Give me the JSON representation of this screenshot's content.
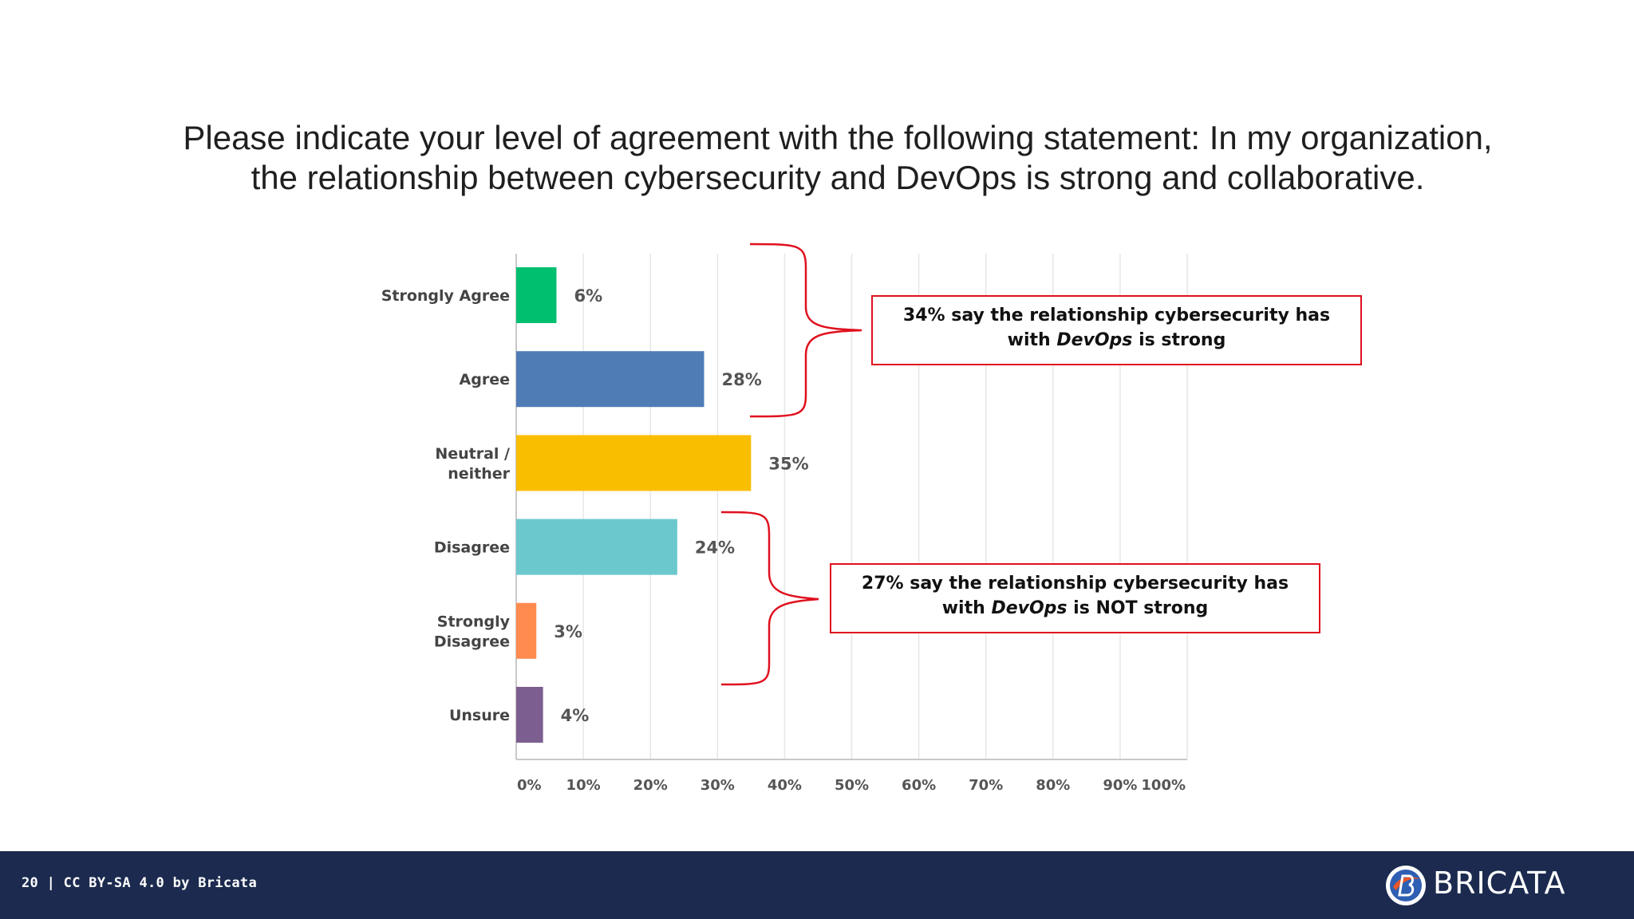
{
  "slide": {
    "title_line1": "Please indicate your level of agreement with the following statement: In my organization,",
    "title_line2": "the relationship between cybersecurity and DevOps is strong and collaborative."
  },
  "chart_data": {
    "type": "bar",
    "orientation": "horizontal",
    "categories": [
      "Strongly Agree",
      "Agree",
      "Neutral / neither",
      "Disagree",
      "Strongly Disagree",
      "Unsure"
    ],
    "category_lines": [
      [
        "Strongly Agree"
      ],
      [
        "Agree"
      ],
      [
        "Neutral /",
        "neither"
      ],
      [
        "Disagree"
      ],
      [
        "Strongly",
        "Disagree"
      ],
      [
        "Unsure"
      ]
    ],
    "values": [
      6,
      28,
      35,
      24,
      3,
      4
    ],
    "data_labels": [
      "6%",
      "28%",
      "35%",
      "24%",
      "3%",
      "4%"
    ],
    "colors": [
      "#00bf6f",
      "#507cb6",
      "#f9be00",
      "#6bc8cd",
      "#ff8b4f",
      "#7d5e90"
    ],
    "xlim": [
      0,
      100
    ],
    "x_ticks": [
      0,
      10,
      20,
      30,
      40,
      50,
      60,
      70,
      80,
      90,
      100
    ],
    "x_tick_labels": [
      "0%",
      "10%",
      "20%",
      "30%",
      "40%",
      "50%",
      "60%",
      "70%",
      "80%",
      "90%",
      "100%"
    ],
    "grid": true,
    "xlabel": "",
    "ylabel": ""
  },
  "annotations": {
    "strong": {
      "line1": "34% say the relationship cybersecurity has",
      "line2_pre": "with ",
      "line2_em": "DevOps",
      "line2_post": " is strong"
    },
    "not_strong": {
      "line1": "27% say the relationship cybersecurity has",
      "line2_pre": "with ",
      "line2_em": "DevOps",
      "line2_post": " is NOT strong"
    },
    "bracket_color": "#e0101e"
  },
  "footer": {
    "text": "20 | CC BY-SA 4.0 by Bricata",
    "logo_text": "BRICATA",
    "background": "#1b2a4e"
  }
}
